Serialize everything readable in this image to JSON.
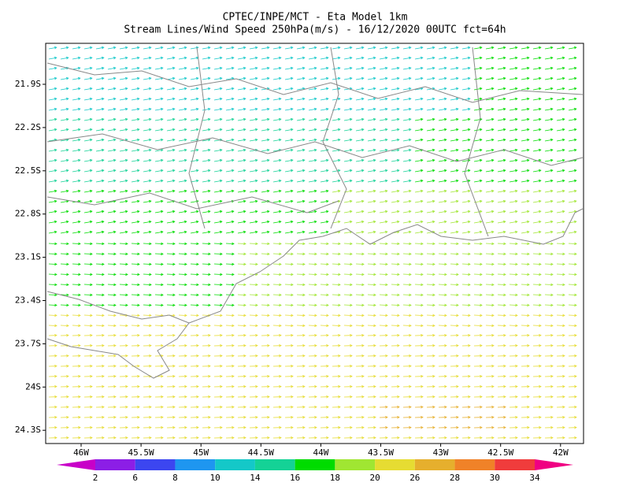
{
  "header": {
    "title": "CPTEC/INPE/MCT -  Eta Model 1km",
    "subtitle": "Stream Lines/Wind Speed 250hPa(m/s) - 16/12/2020 00UTC fct=64h"
  },
  "latitude_labels": [
    "21.9S",
    "22.2S",
    "22.5S",
    "22.8S",
    "23.1S",
    "23.4S",
    "23.7S",
    "24S",
    "24.3S"
  ],
  "longitude_labels": [
    "46W",
    "45.5W",
    "45W",
    "44.5W",
    "44W",
    "43.5W",
    "43W",
    "42.5W",
    "42W"
  ],
  "colorbar": {
    "levels": [
      2,
      6,
      8,
      10,
      14,
      16,
      18,
      20,
      26,
      28,
      30,
      34
    ],
    "colors": [
      "#c800c8",
      "#8c1ee6",
      "#3c46f0",
      "#1e96f0",
      "#14c8c8",
      "#14d296",
      "#00dc00",
      "#a0e632",
      "#e6dc32",
      "#e6af2d",
      "#f08228",
      "#f03c3c",
      "#f00082"
    ]
  }
}
